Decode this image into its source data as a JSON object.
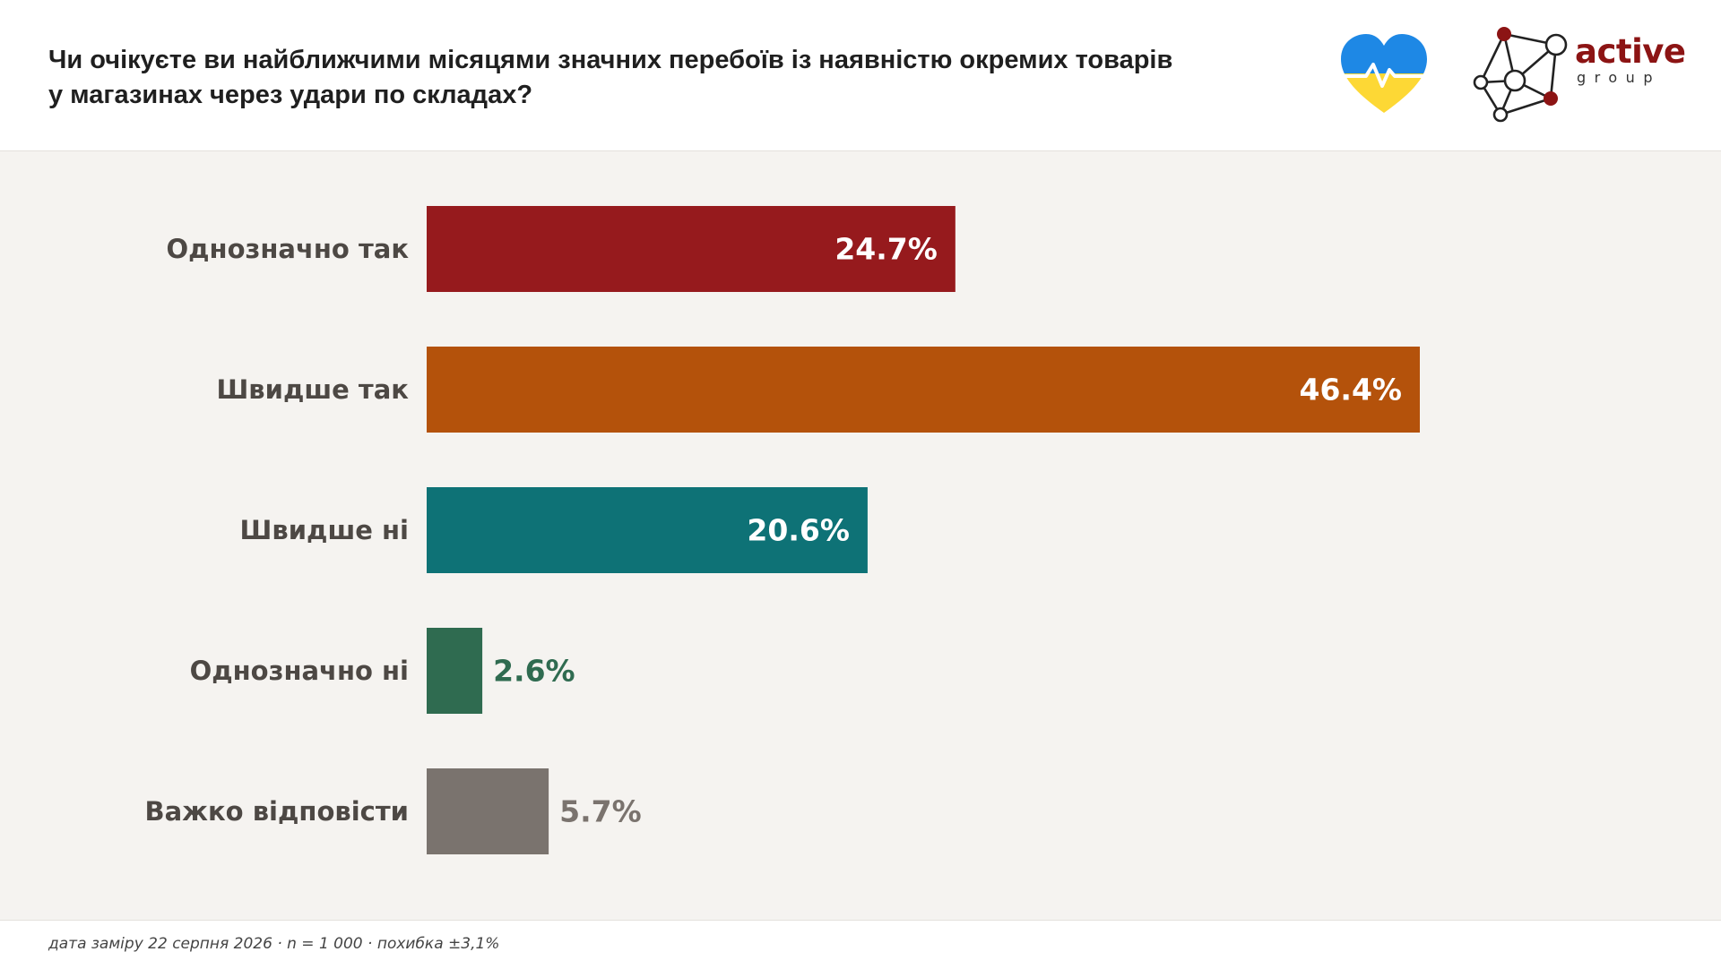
{
  "header": {
    "title_lines": [
      "Чи очікуєте ви найближчими місяцями значних перебоїв із наявністю окремих товарів",
      "у магазинах через удари по складах?"
    ],
    "heart_logo_icon": "ukraine-heart-pulse-icon",
    "brand_name": "active",
    "brand_sub": "group"
  },
  "chart_data": {
    "type": "bar",
    "orientation": "horizontal",
    "title": "Чи очікуєте ви найближчими місяцями значних перебоїв із наявністю окремих товарів у магазинах через удари по складах?",
    "categories": [
      "Однозначно так",
      "Швидше так",
      "Швидше ні",
      "Однозначно ні",
      "Важко відповісти"
    ],
    "values": [
      24.7,
      46.4,
      20.6,
      2.6,
      5.7
    ],
    "value_labels": [
      "24.7%",
      "46.4%",
      "20.6%",
      "2.6%",
      "5.7%"
    ],
    "colors": [
      "#961a1d",
      "#b4520b",
      "#0e7276",
      "#2f6b50",
      "#7a736e"
    ],
    "unit": "%",
    "xlim": [
      0,
      50
    ],
    "grid": false,
    "legend": "none"
  },
  "footer": {
    "note": "дата заміру 22 серпня 2026 · n = 1 000 · похибка ±3,1%"
  }
}
